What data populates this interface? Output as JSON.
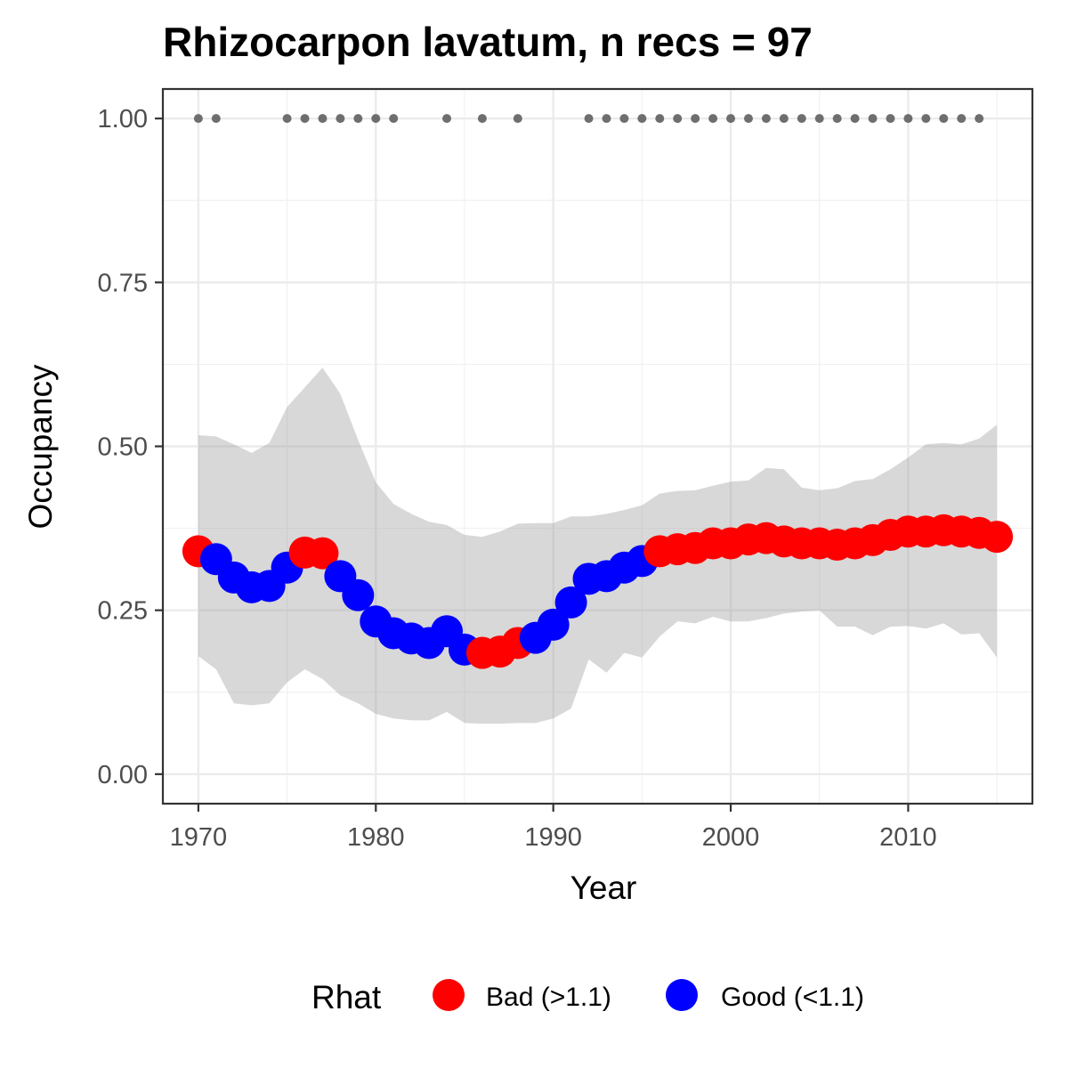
{
  "chart_data": {
    "type": "line",
    "title": "Rhizocarpon lavatum, n recs = 97",
    "xlabel": "Year",
    "ylabel": "Occupancy",
    "xlim": [
      1968,
      2017
    ],
    "ylim": [
      -0.045,
      1.045
    ],
    "x_ticks": [
      1970,
      1980,
      1990,
      2000,
      2010
    ],
    "x_tick_labels": [
      "1970",
      "1980",
      "1990",
      "2000",
      "2010"
    ],
    "y_ticks": [
      0,
      0.25,
      0.5,
      0.75,
      1.0
    ],
    "y_tick_labels": [
      "0.00",
      "0.25",
      "0.50",
      "0.75",
      "1.00"
    ],
    "grid": true,
    "legend": {
      "title": "Rhat",
      "position": "bottom",
      "entries": [
        {
          "key": "bad",
          "label": "Bad (>1.1)",
          "color": "#ff0000"
        },
        {
          "key": "good",
          "label": "Good (<1.1)",
          "color": "#0000ff"
        }
      ]
    },
    "colors": {
      "bad": "#ff0000",
      "good": "#0000ff",
      "ribbon": "#d9d9d9",
      "records": "#6e6e6e"
    },
    "series": [
      {
        "x": [
          1970,
          1971,
          1972,
          1973,
          1974,
          1975,
          1976,
          1977,
          1978,
          1979,
          1980,
          1981,
          1982,
          1983,
          1984,
          1985,
          1986,
          1987,
          1988,
          1989,
          1990,
          1991,
          1992,
          1993,
          1994,
          1995,
          1996,
          1997,
          1998,
          1999,
          2000,
          2001,
          2002,
          2003,
          2004,
          2005,
          2006,
          2007,
          2008,
          2009,
          2010,
          2011,
          2012,
          2013,
          2014,
          2015
        ],
        "mean": [
          0.34,
          0.328,
          0.3,
          0.285,
          0.287,
          0.315,
          0.338,
          0.337,
          0.302,
          0.273,
          0.233,
          0.215,
          0.207,
          0.2,
          0.218,
          0.19,
          0.185,
          0.187,
          0.2,
          0.208,
          0.228,
          0.262,
          0.298,
          0.302,
          0.315,
          0.325,
          0.34,
          0.343,
          0.345,
          0.352,
          0.352,
          0.358,
          0.36,
          0.355,
          0.352,
          0.352,
          0.35,
          0.352,
          0.357,
          0.365,
          0.37,
          0.37,
          0.372,
          0.37,
          0.368,
          0.362
        ],
        "lower": [
          0.18,
          0.16,
          0.108,
          0.105,
          0.108,
          0.14,
          0.16,
          0.145,
          0.12,
          0.108,
          0.092,
          0.085,
          0.082,
          0.082,
          0.095,
          0.078,
          0.077,
          0.077,
          0.078,
          0.078,
          0.085,
          0.1,
          0.175,
          0.155,
          0.185,
          0.178,
          0.21,
          0.233,
          0.23,
          0.24,
          0.233,
          0.233,
          0.238,
          0.245,
          0.248,
          0.25,
          0.225,
          0.225,
          0.212,
          0.225,
          0.226,
          0.222,
          0.23,
          0.213,
          0.215,
          0.178
        ],
        "upper": [
          0.517,
          0.515,
          0.503,
          0.49,
          0.505,
          0.56,
          0.59,
          0.62,
          0.58,
          0.51,
          0.445,
          0.412,
          0.397,
          0.385,
          0.38,
          0.365,
          0.362,
          0.37,
          0.382,
          0.383,
          0.383,
          0.393,
          0.393,
          0.397,
          0.403,
          0.41,
          0.428,
          0.432,
          0.433,
          0.44,
          0.446,
          0.448,
          0.467,
          0.465,
          0.437,
          0.433,
          0.436,
          0.447,
          0.45,
          0.465,
          0.483,
          0.503,
          0.505,
          0.503,
          0.512,
          0.533
        ],
        "rhat": [
          "bad",
          "good",
          "good",
          "good",
          "good",
          "good",
          "bad",
          "bad",
          "good",
          "good",
          "good",
          "good",
          "good",
          "good",
          "good",
          "good",
          "bad",
          "bad",
          "bad",
          "good",
          "good",
          "good",
          "good",
          "good",
          "good",
          "good",
          "bad",
          "bad",
          "bad",
          "bad",
          "bad",
          "bad",
          "bad",
          "bad",
          "bad",
          "bad",
          "bad",
          "bad",
          "bad",
          "bad",
          "bad",
          "bad",
          "bad",
          "bad",
          "bad",
          "bad"
        ]
      }
    ],
    "record_years": [
      1970,
      1971,
      1975,
      1976,
      1977,
      1978,
      1979,
      1980,
      1981,
      1984,
      1986,
      1988,
      1992,
      1993,
      1994,
      1995,
      1996,
      1997,
      1998,
      1999,
      2000,
      2001,
      2002,
      2003,
      2004,
      2005,
      2006,
      2007,
      2008,
      2009,
      2010,
      2011,
      2012,
      2013,
      2014
    ],
    "record_y": 1.0
  }
}
